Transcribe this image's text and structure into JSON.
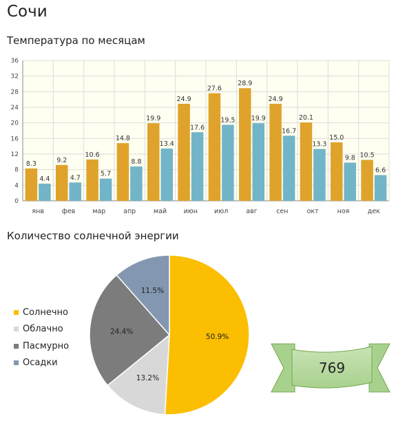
{
  "city": "Сочи",
  "chart_data": [
    {
      "type": "bar",
      "title": "Температура по месяцам",
      "categories": [
        "янв",
        "фев",
        "мар",
        "апр",
        "май",
        "июн",
        "июл",
        "авг",
        "сен",
        "окт",
        "ноя",
        "дек"
      ],
      "series": [
        {
          "values": [
            8.3,
            9.2,
            10.6,
            14.8,
            19.9,
            24.9,
            27.6,
            28.9,
            24.9,
            20.1,
            15.0,
            10.5
          ]
        },
        {
          "values": [
            4.4,
            4.7,
            5.7,
            8.8,
            13.4,
            17.6,
            19.5,
            19.9,
            16.7,
            13.3,
            9.8,
            6.6
          ]
        }
      ],
      "ylim": [
        0,
        36
      ],
      "yticks": [
        0,
        4,
        8,
        12,
        16,
        20,
        24,
        28,
        32,
        36
      ],
      "grid": true,
      "colors": [
        "#dfa32b",
        "#72b4c8"
      ]
    },
    {
      "type": "pie",
      "title": "Количество солнечной энергии",
      "labels": [
        "Солнечно",
        "Облачно",
        "Пасмурно",
        "Осадки"
      ],
      "values": [
        50.9,
        13.2,
        24.4,
        11.5
      ],
      "value_labels": [
        "50.9%",
        "13.2%",
        "24.4%",
        "11.5%"
      ],
      "colors": [
        "#fbbe00",
        "#d8d8d8",
        "#7c7c7c",
        "#8397b0"
      ],
      "legend": "left"
    }
  ],
  "badge": {
    "value": "769",
    "colors": {
      "fill": "#a9d18e",
      "fill_light": "#c8e3b4",
      "stroke": "#70a850"
    }
  }
}
